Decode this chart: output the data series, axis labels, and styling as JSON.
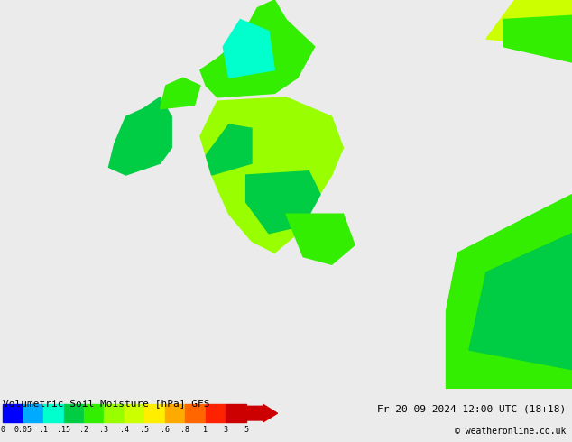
{
  "title": "Volumetric Soil Moisture [hPa] GFS",
  "date_text": "Fr 20-09-2024 12:00 UTC (18+18)",
  "credit_text": "© weatheronline.co.uk",
  "background_color": "#e8e8e8",
  "colorbar_levels": [
    0,
    0.05,
    0.1,
    0.15,
    0.2,
    0.3,
    0.4,
    0.5,
    0.6,
    0.8,
    1.0,
    3.0,
    5.0
  ],
  "colorbar_colors": [
    "#0000ff",
    "#00aaff",
    "#00ffcc",
    "#00cc44",
    "#33ee00",
    "#99ff00",
    "#ccff00",
    "#ffee00",
    "#ffaa00",
    "#ff6600",
    "#ff2200",
    "#cc0000"
  ],
  "colorbar_tick_labels": [
    "0",
    "0.05",
    ".1",
    ".15",
    ".2",
    ".3",
    ".4",
    ".5",
    ".6",
    ".8",
    "1",
    "3",
    "5"
  ],
  "map_bg": "#ebebeb",
  "fig_width": 6.34,
  "fig_height": 4.9
}
